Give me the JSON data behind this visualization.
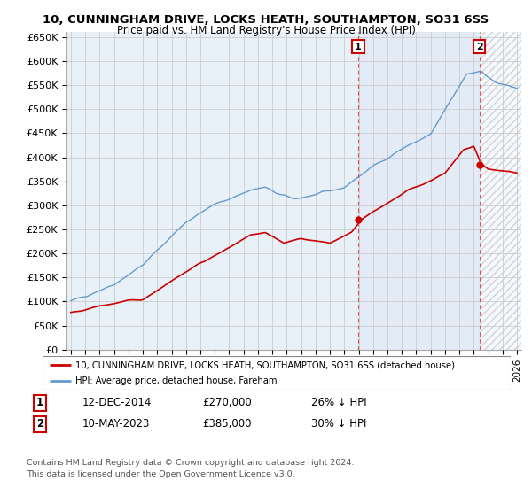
{
  "title": "10, CUNNINGHAM DRIVE, LOCKS HEATH, SOUTHAMPTON, SO31 6SS",
  "subtitle": "Price paid vs. HM Land Registry's House Price Index (HPI)",
  "legend_label_red": "10, CUNNINGHAM DRIVE, LOCKS HEATH, SOUTHAMPTON, SO31 6SS (detached house)",
  "legend_label_blue": "HPI: Average price, detached house, Fareham",
  "annotation1_label": "1",
  "annotation1_date": "12-DEC-2014",
  "annotation1_price": "£270,000",
  "annotation1_note": "26% ↓ HPI",
  "annotation2_label": "2",
  "annotation2_date": "10-MAY-2023",
  "annotation2_price": "£385,000",
  "annotation2_note": "30% ↓ HPI",
  "footer": "Contains HM Land Registry data © Crown copyright and database right 2024.\nThis data is licensed under the Open Government Licence v3.0.",
  "ylim": [
    0,
    660000
  ],
  "yticks": [
    0,
    50000,
    100000,
    150000,
    200000,
    250000,
    300000,
    350000,
    400000,
    450000,
    500000,
    550000,
    600000,
    650000
  ],
  "background_color": "#ffffff",
  "grid_color": "#cccccc",
  "red_color": "#cc0000",
  "blue_color": "#6699cc",
  "blue_fill_color": "#dde8f5",
  "annotation_vline_color": "#dd4444",
  "plot_bg": "#e8f0f8",
  "hatch_color": "#cccccc",
  "sale1_t": 2014.958,
  "sale1_price": 270000,
  "sale2_t": 2023.375,
  "sale2_price": 385000,
  "xlim_left": 1994.7,
  "xlim_right": 2026.3
}
